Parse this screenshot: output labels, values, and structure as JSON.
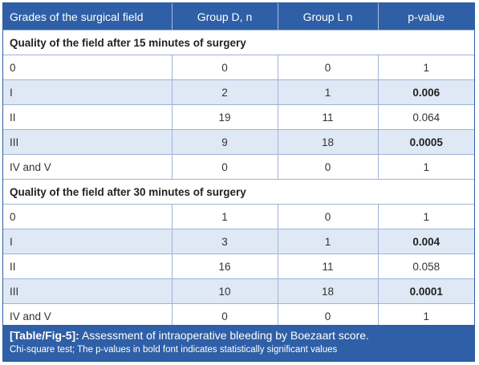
{
  "table": {
    "headers": [
      "Grades of the surgical field",
      "Group D, n",
      "Group L n",
      "p-value"
    ],
    "sections": [
      {
        "title": "Quality of the field after 15 minutes of surgery",
        "rows": [
          {
            "grade": "0",
            "group_d": "0",
            "group_l": "0",
            "p_value": "1",
            "significant": false
          },
          {
            "grade": "I",
            "group_d": "2",
            "group_l": "1",
            "p_value": "0.006",
            "significant": true
          },
          {
            "grade": "II",
            "group_d": "19",
            "group_l": "11",
            "p_value": "0.064",
            "significant": false
          },
          {
            "grade": "III",
            "group_d": "9",
            "group_l": "18",
            "p_value": "0.0005",
            "significant": true
          },
          {
            "grade": "IV and V",
            "group_d": "0",
            "group_l": "0",
            "p_value": "1",
            "significant": false
          }
        ]
      },
      {
        "title": "Quality of the field after 30 minutes of surgery",
        "rows": [
          {
            "grade": "0",
            "group_d": "1",
            "group_l": "0",
            "p_value": "1",
            "significant": false
          },
          {
            "grade": "I",
            "group_d": "3",
            "group_l": "1",
            "p_value": "0.004",
            "significant": true
          },
          {
            "grade": "II",
            "group_d": "16",
            "group_l": "11",
            "p_value": "0.058",
            "significant": false
          },
          {
            "grade": "III",
            "group_d": "10",
            "group_l": "18",
            "p_value": "0.0001",
            "significant": true
          },
          {
            "grade": "IV and V",
            "group_d": "0",
            "group_l": "0",
            "p_value": "1",
            "significant": false
          }
        ]
      }
    ]
  },
  "caption": {
    "label": "[Table/Fig-5]:",
    "text": " Assessment of intraoperative bleeding by Boezaart score.",
    "note": "Chi-square test; The p-values in bold font indicates statistically significant values"
  },
  "colors": {
    "header_bg": "#2f5fa6",
    "alt_row_bg": "#dfe8f5"
  }
}
